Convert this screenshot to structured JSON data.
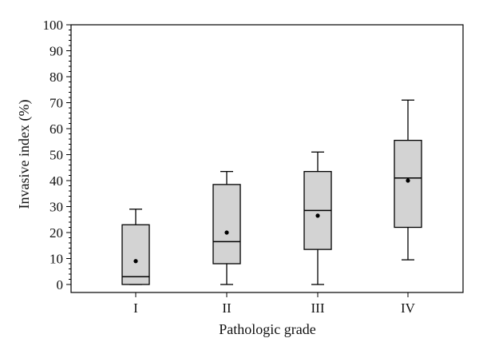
{
  "chart_data": {
    "type": "boxplot",
    "title": "",
    "xlabel": "Pathologic grade",
    "ylabel": "Invasive index (%)",
    "ylim": [
      0,
      100
    ],
    "yticks": [
      0,
      10,
      20,
      30,
      40,
      50,
      60,
      70,
      80,
      90,
      100
    ],
    "categories": [
      "I",
      "II",
      "III",
      "IV"
    ],
    "boxes": [
      {
        "category": "I",
        "min": 0,
        "q1": 0,
        "median": 3,
        "q3": 23,
        "max": 29,
        "mean": 9
      },
      {
        "category": "II",
        "min": 0,
        "q1": 8,
        "median": 16.5,
        "q3": 38.5,
        "max": 43.5,
        "mean": 20
      },
      {
        "category": "III",
        "min": 0,
        "q1": 13.5,
        "median": 28.5,
        "q3": 43.5,
        "max": 51,
        "mean": 26.5
      },
      {
        "category": "IV",
        "min": 9.5,
        "q1": 22,
        "median": 41,
        "q3": 55.5,
        "max": 71,
        "mean": 40
      }
    ],
    "grid": false,
    "colors": {
      "box_fill": "#d3d3d3",
      "stroke": "#000000"
    }
  }
}
